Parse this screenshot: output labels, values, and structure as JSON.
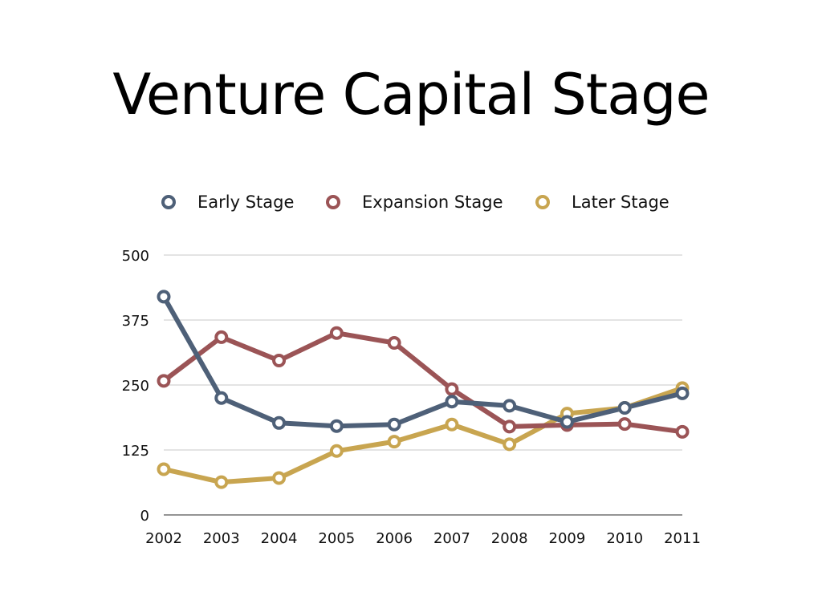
{
  "slide": {
    "title": "Venture Capital Stage"
  },
  "colors": {
    "early": "#4e6078",
    "expansion": "#9b5456",
    "later": "#c8a550",
    "grid": "#c8c8c8",
    "axis": "#555555"
  },
  "chart_data": {
    "type": "line",
    "title": "",
    "xlabel": "",
    "ylabel": "",
    "categories": [
      "2002",
      "2003",
      "2004",
      "2005",
      "2006",
      "2007",
      "2008",
      "2009",
      "2010",
      "2011"
    ],
    "ylim": [
      0,
      500
    ],
    "yticks": [
      "0",
      "125",
      "250",
      "375",
      "500"
    ],
    "grid": true,
    "legend_position": "top",
    "series": [
      {
        "name": "Early Stage",
        "color": "#4e6078",
        "values": [
          420,
          225,
          177,
          171,
          174,
          218,
          210,
          179,
          206,
          234
        ]
      },
      {
        "name": "Expansion Stage",
        "color": "#9b5456",
        "values": [
          258,
          342,
          297,
          350,
          331,
          242,
          170,
          173,
          175,
          160
        ]
      },
      {
        "name": "Later Stage",
        "color": "#c8a550",
        "values": [
          88,
          63,
          71,
          123,
          141,
          174,
          136,
          195,
          206,
          244
        ]
      }
    ]
  }
}
